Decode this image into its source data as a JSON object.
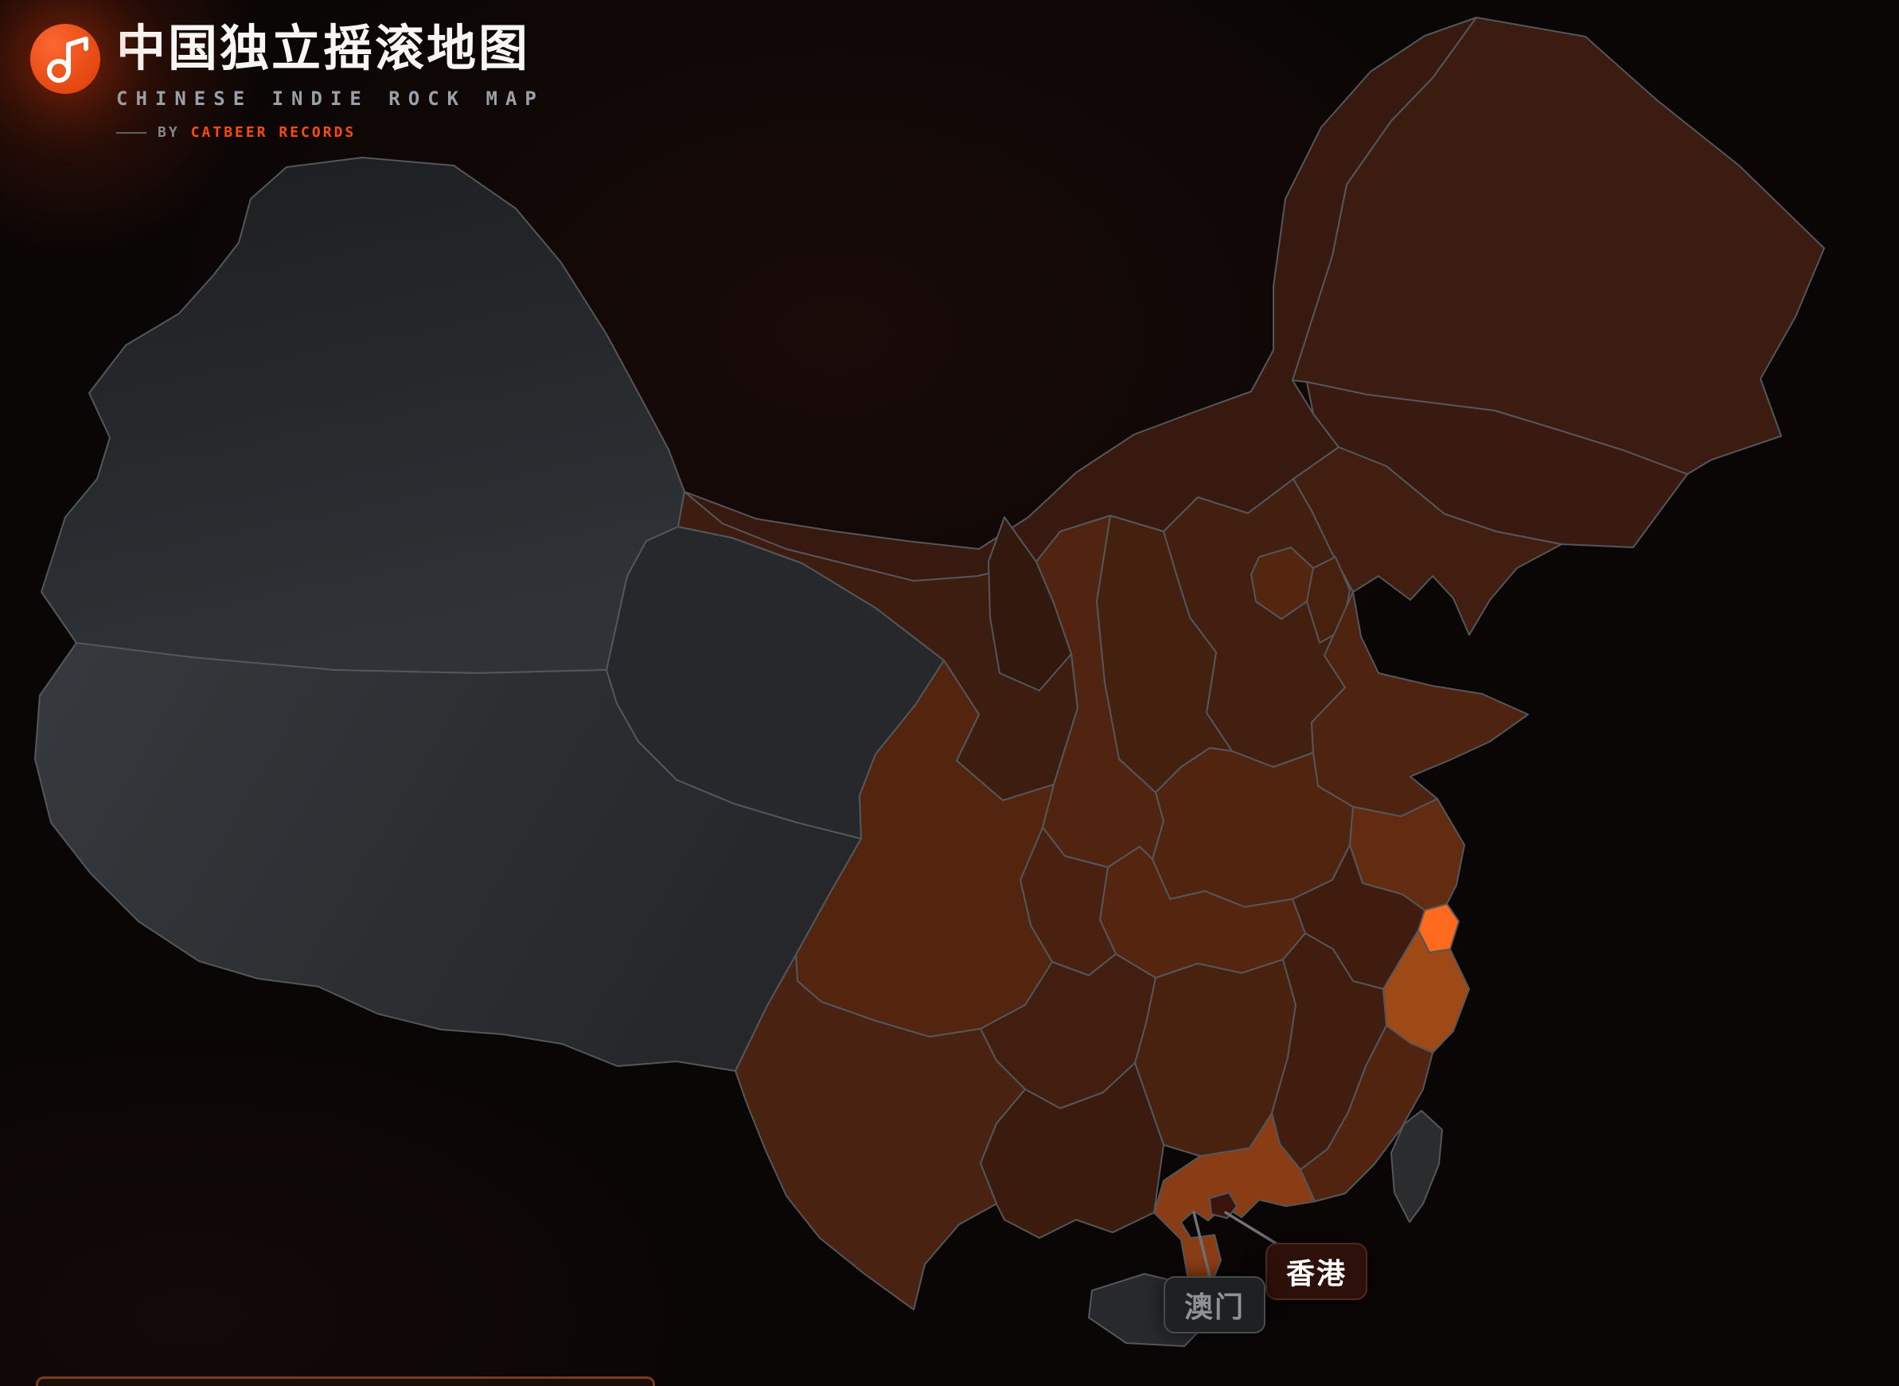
{
  "page": {
    "bg_color": "#0b0606"
  },
  "header": {
    "logo": {
      "icon": "music-note-icon",
      "bg_color": "#fd4e10"
    },
    "title": "中国独立摇滚地图",
    "subtitle": "CHINESE INDIE ROCK MAP",
    "byline": {
      "prefix": "BY",
      "brand": "CATBEER RECORDS",
      "brand_color": "#fd4b0c"
    }
  },
  "map": {
    "stroke_color": "#53575b",
    "leader_line_color": "#6e7276",
    "sea_color": "#0b0606",
    "gradients": {
      "grad-xinjiang": {
        "from": "#1c1e20",
        "to": "#2f3236"
      },
      "grad-tibet": {
        "from": "#36393d",
        "to": "#25272a"
      }
    },
    "regions": [
      {
        "id": "xinjiang",
        "fill": "grad-xinjiang"
      },
      {
        "id": "tibet",
        "fill": "grad-tibet"
      },
      {
        "id": "qinghai",
        "fill": "#26282b"
      },
      {
        "id": "gansu",
        "fill": "#3e1d11"
      },
      {
        "id": "neimenggu",
        "fill": "#38190f"
      },
      {
        "id": "heilongjiang",
        "fill": "#3c1b11"
      },
      {
        "id": "jilin",
        "fill": "#3a1a10"
      },
      {
        "id": "liaoning",
        "fill": "#411e10"
      },
      {
        "id": "hebei",
        "fill": "#431f10"
      },
      {
        "id": "shanxi",
        "fill": "#44200f"
      },
      {
        "id": "shaanxi",
        "fill": "#502410"
      },
      {
        "id": "ningxia",
        "fill": "#33180d"
      },
      {
        "id": "beijing",
        "fill": "#542610"
      },
      {
        "id": "tianjin",
        "fill": "#47210e"
      },
      {
        "id": "shandong",
        "fill": "#4e2310"
      },
      {
        "id": "henan",
        "fill": "#512410"
      },
      {
        "id": "jiangsu",
        "fill": "#632c10"
      },
      {
        "id": "anhui",
        "fill": "#3f1c0e"
      },
      {
        "id": "hubei",
        "fill": "#55250f"
      },
      {
        "id": "chongqing",
        "fill": "#4a2110"
      },
      {
        "id": "sichuan",
        "fill": "#53250f"
      },
      {
        "id": "guizhou",
        "fill": "#421e10"
      },
      {
        "id": "hunan",
        "fill": "#49210f"
      },
      {
        "id": "jiangxi",
        "fill": "#401d0e"
      },
      {
        "id": "zhejiang",
        "fill": "#9e4916"
      },
      {
        "id": "fujian",
        "fill": "#512410"
      },
      {
        "id": "guangxi",
        "fill": "#3a1b0e"
      },
      {
        "id": "guangdong",
        "fill": "#8a3c15"
      },
      {
        "id": "yunnan",
        "fill": "#4a2212"
      },
      {
        "id": "hainan",
        "fill": "#27292c"
      },
      {
        "id": "taiwan",
        "fill": "#2a2c2e"
      },
      {
        "id": "shanghai",
        "fill": "#fd6a1d"
      },
      {
        "id": "hongkong",
        "fill": "#3a130c"
      }
    ],
    "callouts": [
      {
        "id": "hongkong",
        "label": "香港",
        "bg": "#2e100b",
        "border": "#52281e",
        "text_color": "#ffffff"
      },
      {
        "id": "macau",
        "label": "澳门",
        "bg": "#1e2022",
        "border": "#47494c",
        "text_color": "#8e9296"
      }
    ]
  },
  "footer_panel": {
    "border_color": "#7c3c1c",
    "bg": "#1b0d07"
  }
}
